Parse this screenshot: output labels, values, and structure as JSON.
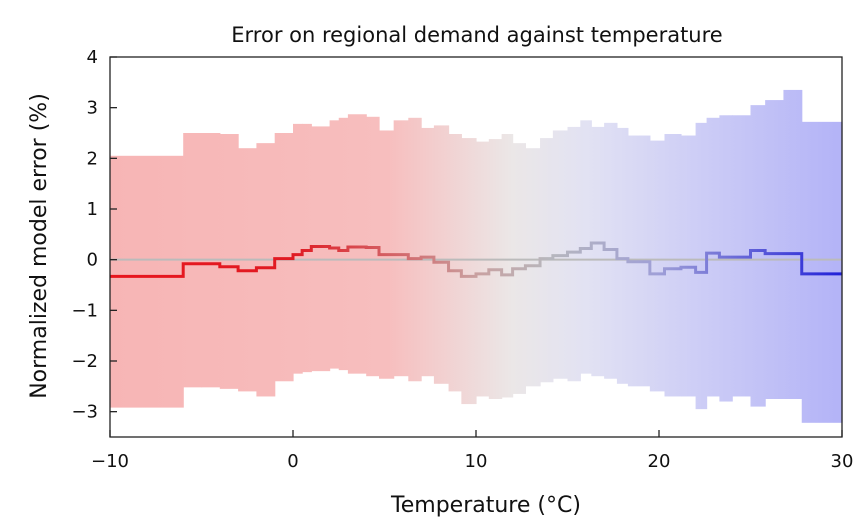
{
  "chart_data": {
    "type": "line",
    "title": "Error on regional demand against temperature",
    "xlabel": "Temperature (°C)",
    "ylabel": "Normalized model error (%)",
    "xlim": [
      -10,
      30
    ],
    "ylim": [
      -3.5,
      4
    ],
    "xticks": [
      -10,
      0,
      10,
      20,
      30
    ],
    "yticks": [
      -3,
      -2,
      -1,
      0,
      1,
      2,
      3,
      4
    ],
    "xtick_labels": [
      "−10",
      "0",
      "10",
      "20",
      "30"
    ],
    "ytick_labels": [
      "−3",
      "−2",
      "−1",
      "0",
      "1",
      "2",
      "3",
      "4"
    ],
    "grid": false,
    "colors": {
      "cold": "#e8161e",
      "mid": "#b4b4b4",
      "warm": "#2020d8",
      "zero_line": "#bbbbbb"
    },
    "bins": [
      {
        "x0": -10,
        "x1": -6,
        "mean": -0.33,
        "upper": 2.05,
        "lower": -2.92
      },
      {
        "x0": -6,
        "x1": -5,
        "mean": -0.08,
        "upper": 2.5,
        "lower": -2.52
      },
      {
        "x0": -5,
        "x1": -4,
        "mean": -0.08,
        "upper": 2.5,
        "lower": -2.52
      },
      {
        "x0": -4,
        "x1": -3,
        "mean": -0.14,
        "upper": 2.48,
        "lower": -2.55
      },
      {
        "x0": -3,
        "x1": -2,
        "mean": -0.22,
        "upper": 2.2,
        "lower": -2.6
      },
      {
        "x0": -2,
        "x1": -1,
        "mean": -0.16,
        "upper": 2.3,
        "lower": -2.7
      },
      {
        "x0": -1,
        "x1": 0,
        "mean": 0.02,
        "upper": 2.5,
        "lower": -2.4
      },
      {
        "x0": 0,
        "x1": 0.5,
        "mean": 0.1,
        "upper": 2.68,
        "lower": -2.25
      },
      {
        "x0": 0.5,
        "x1": 1,
        "mean": 0.18,
        "upper": 2.68,
        "lower": -2.22
      },
      {
        "x0": 1,
        "x1": 2,
        "mean": 0.26,
        "upper": 2.63,
        "lower": -2.2
      },
      {
        "x0": 2,
        "x1": 2.5,
        "mean": 0.23,
        "upper": 2.75,
        "lower": -2.15
      },
      {
        "x0": 2.5,
        "x1": 3,
        "mean": 0.18,
        "upper": 2.8,
        "lower": -2.18
      },
      {
        "x0": 3,
        "x1": 4,
        "mean": 0.25,
        "upper": 2.87,
        "lower": -2.25
      },
      {
        "x0": 4,
        "x1": 4.7,
        "mean": 0.24,
        "upper": 2.82,
        "lower": -2.3
      },
      {
        "x0": 4.7,
        "x1": 5.5,
        "mean": 0.1,
        "upper": 2.55,
        "lower": -2.35
      },
      {
        "x0": 5.5,
        "x1": 6.3,
        "mean": 0.1,
        "upper": 2.75,
        "lower": -2.3
      },
      {
        "x0": 6.3,
        "x1": 7,
        "mean": 0.02,
        "upper": 2.8,
        "lower": -2.4
      },
      {
        "x0": 7,
        "x1": 7.7,
        "mean": 0.05,
        "upper": 2.6,
        "lower": -2.3
      },
      {
        "x0": 7.7,
        "x1": 8.5,
        "mean": -0.05,
        "upper": 2.65,
        "lower": -2.45
      },
      {
        "x0": 8.5,
        "x1": 9.2,
        "mean": -0.22,
        "upper": 2.48,
        "lower": -2.6
      },
      {
        "x0": 9.2,
        "x1": 10,
        "mean": -0.33,
        "upper": 2.4,
        "lower": -2.85
      },
      {
        "x0": 10,
        "x1": 10.7,
        "mean": -0.28,
        "upper": 2.33,
        "lower": -2.7
      },
      {
        "x0": 10.7,
        "x1": 11.4,
        "mean": -0.2,
        "upper": 2.38,
        "lower": -2.75
      },
      {
        "x0": 11.4,
        "x1": 12,
        "mean": -0.3,
        "upper": 2.48,
        "lower": -2.72
      },
      {
        "x0": 12,
        "x1": 12.7,
        "mean": -0.18,
        "upper": 2.3,
        "lower": -2.65
      },
      {
        "x0": 12.7,
        "x1": 13.5,
        "mean": -0.12,
        "upper": 2.2,
        "lower": -2.5
      },
      {
        "x0": 13.5,
        "x1": 14.2,
        "mean": 0.02,
        "upper": 2.4,
        "lower": -2.42
      },
      {
        "x0": 14.2,
        "x1": 15,
        "mean": 0.08,
        "upper": 2.55,
        "lower": -2.35
      },
      {
        "x0": 15,
        "x1": 15.7,
        "mean": 0.15,
        "upper": 2.62,
        "lower": -2.4
      },
      {
        "x0": 15.7,
        "x1": 16.3,
        "mean": 0.22,
        "upper": 2.75,
        "lower": -2.25
      },
      {
        "x0": 16.3,
        "x1": 17,
        "mean": 0.33,
        "upper": 2.62,
        "lower": -2.3
      },
      {
        "x0": 17,
        "x1": 17.7,
        "mean": 0.2,
        "upper": 2.7,
        "lower": -2.35
      },
      {
        "x0": 17.7,
        "x1": 18.3,
        "mean": 0.02,
        "upper": 2.6,
        "lower": -2.45
      },
      {
        "x0": 18.3,
        "x1": 19.5,
        "mean": -0.04,
        "upper": 2.45,
        "lower": -2.5
      },
      {
        "x0": 19.5,
        "x1": 20.3,
        "mean": -0.28,
        "upper": 2.35,
        "lower": -2.6
      },
      {
        "x0": 20.3,
        "x1": 21.2,
        "mean": -0.18,
        "upper": 2.48,
        "lower": -2.7
      },
      {
        "x0": 21.2,
        "x1": 22,
        "mean": -0.15,
        "upper": 2.45,
        "lower": -2.7
      },
      {
        "x0": 22,
        "x1": 22.6,
        "mean": -0.25,
        "upper": 2.7,
        "lower": -2.95
      },
      {
        "x0": 22.6,
        "x1": 23.3,
        "mean": 0.13,
        "upper": 2.8,
        "lower": -2.7
      },
      {
        "x0": 23.3,
        "x1": 24,
        "mean": 0.05,
        "upper": 2.85,
        "lower": -2.8
      },
      {
        "x0": 24,
        "x1": 25,
        "mean": 0.05,
        "upper": 2.85,
        "lower": -2.7
      },
      {
        "x0": 25,
        "x1": 25.8,
        "mean": 0.18,
        "upper": 3.05,
        "lower": -2.9
      },
      {
        "x0": 25.8,
        "x1": 26.8,
        "mean": 0.12,
        "upper": 3.15,
        "lower": -2.75
      },
      {
        "x0": 26.8,
        "x1": 27.8,
        "mean": 0.12,
        "upper": 3.35,
        "lower": -2.75
      },
      {
        "x0": 27.8,
        "x1": 30,
        "mean": -0.28,
        "upper": 2.72,
        "lower": -3.22
      }
    ]
  }
}
